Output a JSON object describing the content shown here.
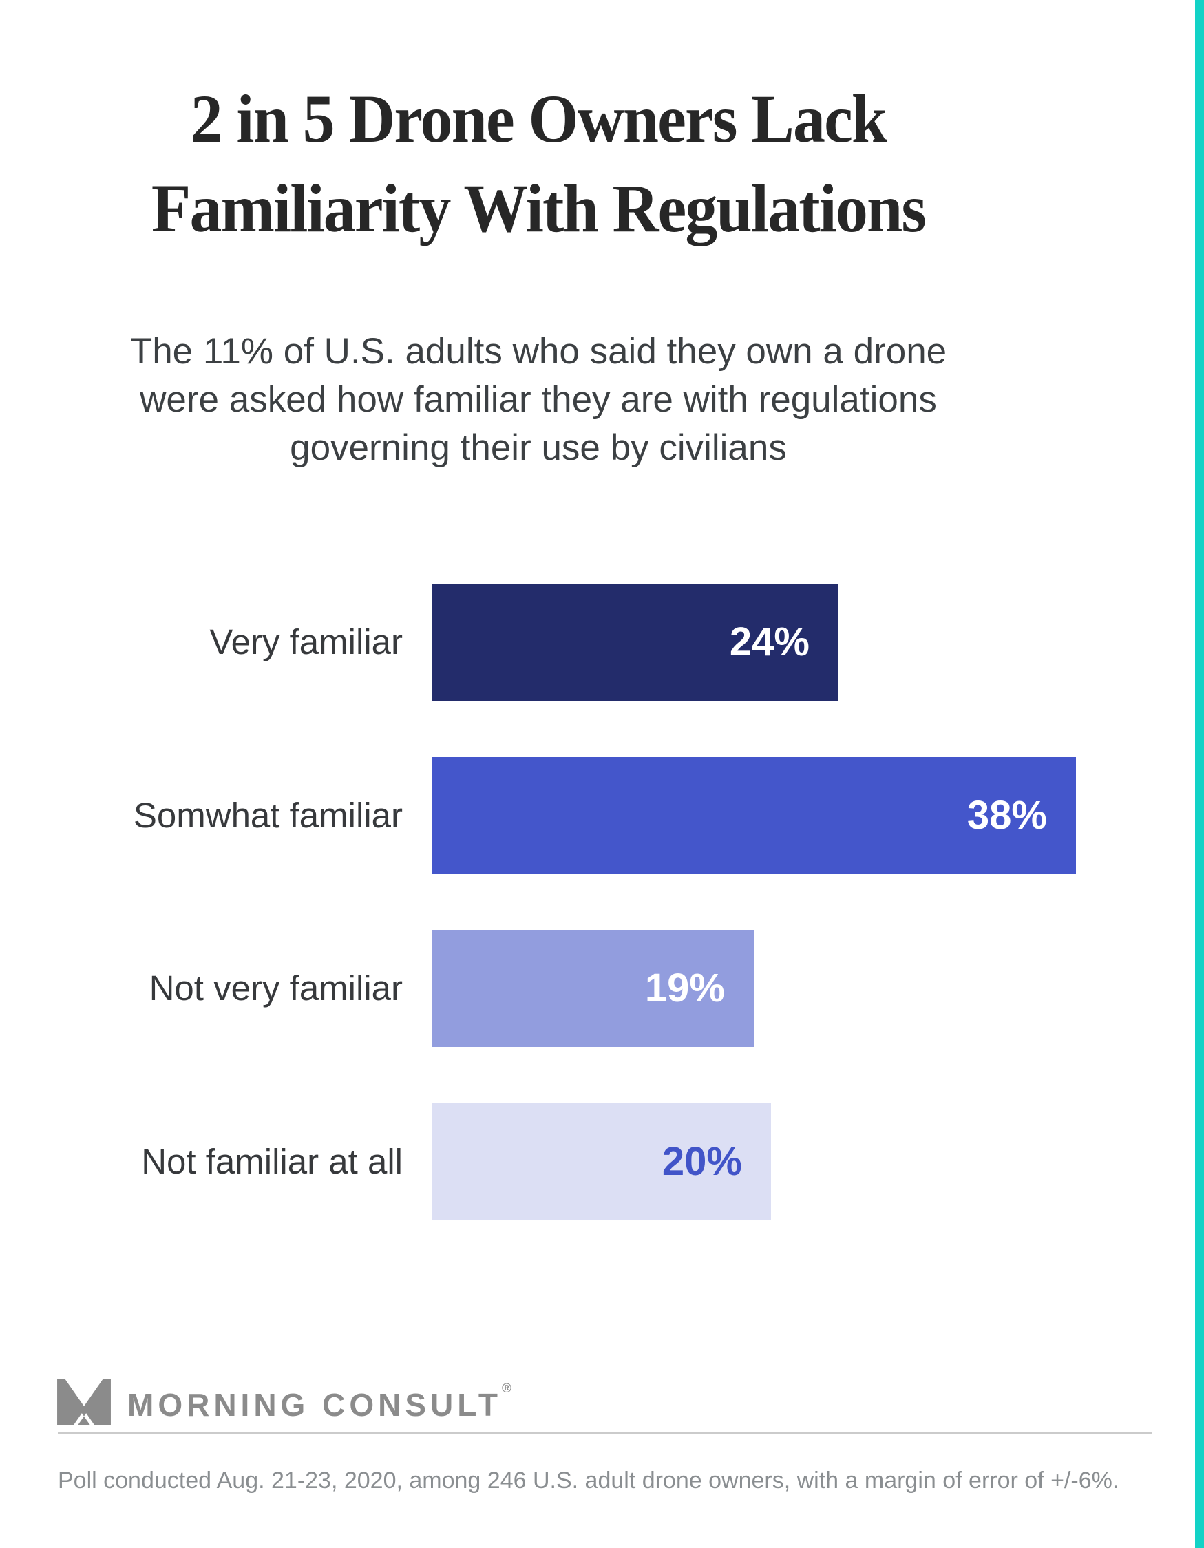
{
  "page": {
    "background": "#ffffff",
    "accent_stripe_color": "#12d2c6"
  },
  "header": {
    "title_line1": "2 in 5 Drone Owners Lack",
    "title_line2": "Familiarity With Regulations",
    "subtitle_line1": "The 11% of U.S. adults who said they own a drone",
    "subtitle_line2": "were asked how familiar they are with regulations",
    "subtitle_line3": "governing their use by civilians"
  },
  "chart_data": {
    "type": "bar",
    "orientation": "horizontal",
    "title": "2 in 5 Drone Owners Lack Familiarity With Regulations",
    "categories": [
      "Very familiar",
      "Somwhat familiar",
      "Not very familiar",
      "Not familiar at all"
    ],
    "values": [
      24,
      38,
      19,
      20
    ],
    "value_labels": [
      "24%",
      "38%",
      "19%",
      "20%"
    ],
    "bar_colors": [
      "#232c6b",
      "#4456cb",
      "#929dde",
      "#dcdff4"
    ],
    "value_label_colors": [
      "#ffffff",
      "#ffffff",
      "#ffffff",
      "#4154c8"
    ],
    "value_label_position": "inside-end",
    "grid": false,
    "legend": false
  },
  "footer": {
    "logo_text": "MORNING CONSULT",
    "logo_registered": "®",
    "logo_color": "#8b8b8b",
    "source_note": "Poll conducted Aug. 21-23, 2020, among 246 U.S. adult drone owners, with a margin of error of +/-6%."
  }
}
